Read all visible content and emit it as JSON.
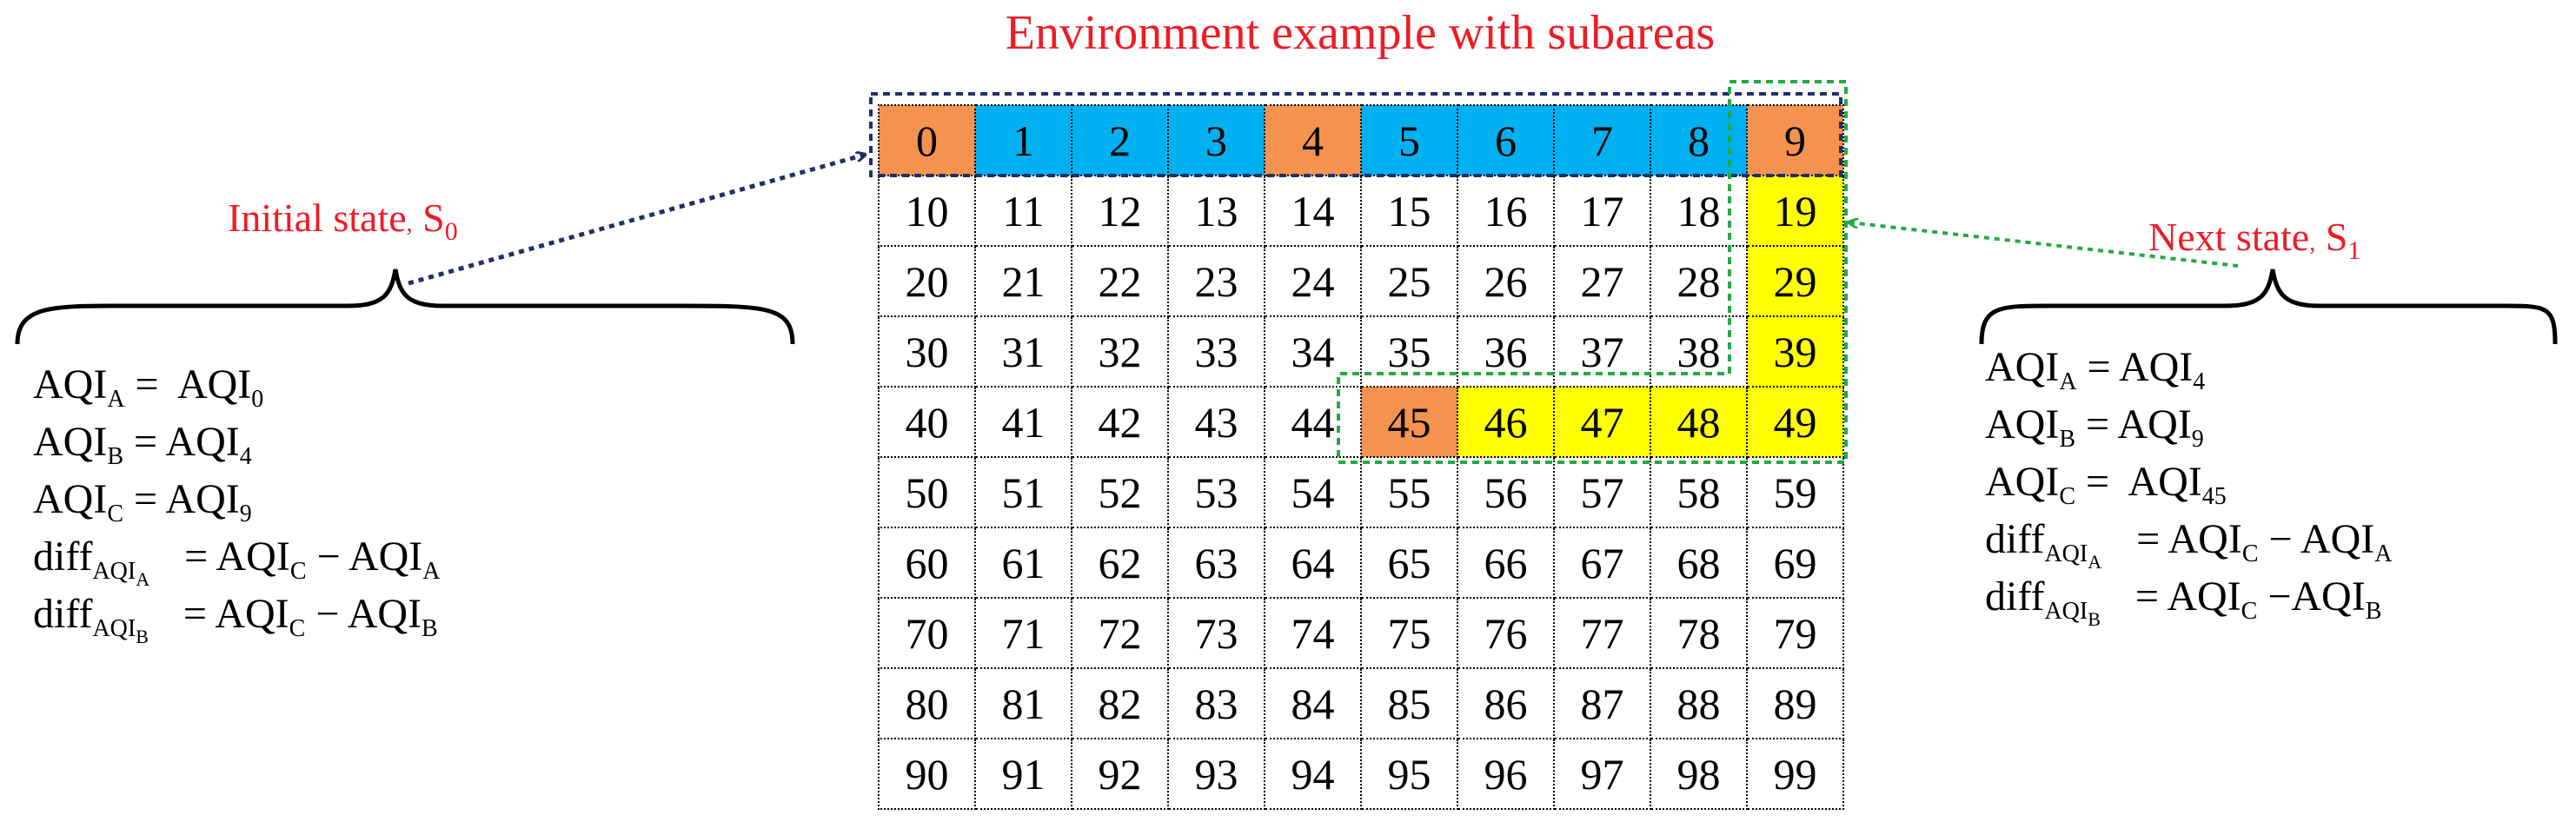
{
  "title": "Environment example with subareas",
  "colors": {
    "title": "#ee1c25",
    "orange": "#f4934f",
    "blue": "#00b0f0",
    "yellow": "#ffff00",
    "initial_arrow": "#1f2f6b",
    "next_arrow": "#22aa44"
  },
  "grid": {
    "rows": [
      [
        "0",
        "1",
        "2",
        "3",
        "4",
        "5",
        "6",
        "7",
        "8",
        "9"
      ],
      [
        "10",
        "11",
        "12",
        "13",
        "14",
        "15",
        "16",
        "17",
        "18",
        "19"
      ],
      [
        "20",
        "21",
        "22",
        "23",
        "24",
        "25",
        "26",
        "27",
        "28",
        "29"
      ],
      [
        "30",
        "31",
        "32",
        "33",
        "34",
        "35",
        "36",
        "37",
        "38",
        "39"
      ],
      [
        "40",
        "41",
        "42",
        "43",
        "44",
        "45",
        "46",
        "47",
        "48",
        "49"
      ],
      [
        "50",
        "51",
        "52",
        "53",
        "54",
        "55",
        "56",
        "57",
        "58",
        "59"
      ],
      [
        "60",
        "61",
        "62",
        "63",
        "64",
        "65",
        "66",
        "67",
        "68",
        "69"
      ],
      [
        "70",
        "71",
        "72",
        "73",
        "74",
        "75",
        "76",
        "77",
        "78",
        "79"
      ],
      [
        "80",
        "81",
        "82",
        "83",
        "84",
        "85",
        "86",
        "87",
        "88",
        "89"
      ],
      [
        "90",
        "91",
        "92",
        "93",
        "94",
        "95",
        "96",
        "97",
        "98",
        "99"
      ]
    ],
    "orange": [
      "0",
      "4",
      "9",
      "45"
    ],
    "blue": [
      "1",
      "2",
      "3",
      "5",
      "6",
      "7",
      "8"
    ],
    "yellow": [
      "19",
      "29",
      "39",
      "46",
      "47",
      "48",
      "49"
    ]
  },
  "initial": {
    "label": "Initial state",
    "label_sep": ",",
    "label_sym": "S",
    "label_sub": "0",
    "eq_a": {
      "lhs": "AQI",
      "lhs_sub": "A",
      "op": " =  ",
      "rhs": "AQI",
      "rhs_sub": "0"
    },
    "eq_b": {
      "lhs": "AQI",
      "lhs_sub": "B",
      "op": " = ",
      "rhs": "AQI",
      "rhs_sub": "4"
    },
    "eq_c": {
      "lhs": "AQI",
      "lhs_sub": "C",
      "op": " = ",
      "rhs": "AQI",
      "rhs_sub": "9"
    },
    "diff_a": {
      "lhs": "diff",
      "lhs_sub": "AQI",
      "lhs_subsub": "A",
      "op": " = ",
      "t1": "AQI",
      "t1_sub": "C",
      "minus": " − ",
      "t2": "AQI",
      "t2_sub": "A"
    },
    "diff_b": {
      "lhs": "diff",
      "lhs_sub": "AQI",
      "lhs_subsub": "B",
      "op": " = ",
      "t1": "AQI",
      "t1_sub": "C",
      "minus": " − ",
      "t2": "AQI",
      "t2_sub": "B"
    }
  },
  "next": {
    "label": "Next state",
    "label_sep": ",",
    "label_sym": "S",
    "label_sub": "1",
    "eq_a": {
      "lhs": "AQI",
      "lhs_sub": "A",
      "op": " = ",
      "rhs": "AQI",
      "rhs_sub": "4"
    },
    "eq_b": {
      "lhs": "AQI",
      "lhs_sub": "B",
      "op": " = ",
      "rhs": "AQI",
      "rhs_sub": "9"
    },
    "eq_c": {
      "lhs": "AQI",
      "lhs_sub": "C",
      "op": " =  ",
      "rhs": "AQI",
      "rhs_sub": "45"
    },
    "diff_a": {
      "lhs": "diff",
      "lhs_sub": "AQI",
      "lhs_subsub": "A",
      "op": " = ",
      "t1": "AQI",
      "t1_sub": "C",
      "minus": " − ",
      "t2": "AQI",
      "t2_sub": "A"
    },
    "diff_b": {
      "lhs": "diff",
      "lhs_sub": "AQI",
      "lhs_subsub": "B",
      "op": " = ",
      "t1": "AQI",
      "t1_sub": "C",
      "minus": " −",
      "t2": "AQI",
      "t2_sub": "B"
    }
  }
}
